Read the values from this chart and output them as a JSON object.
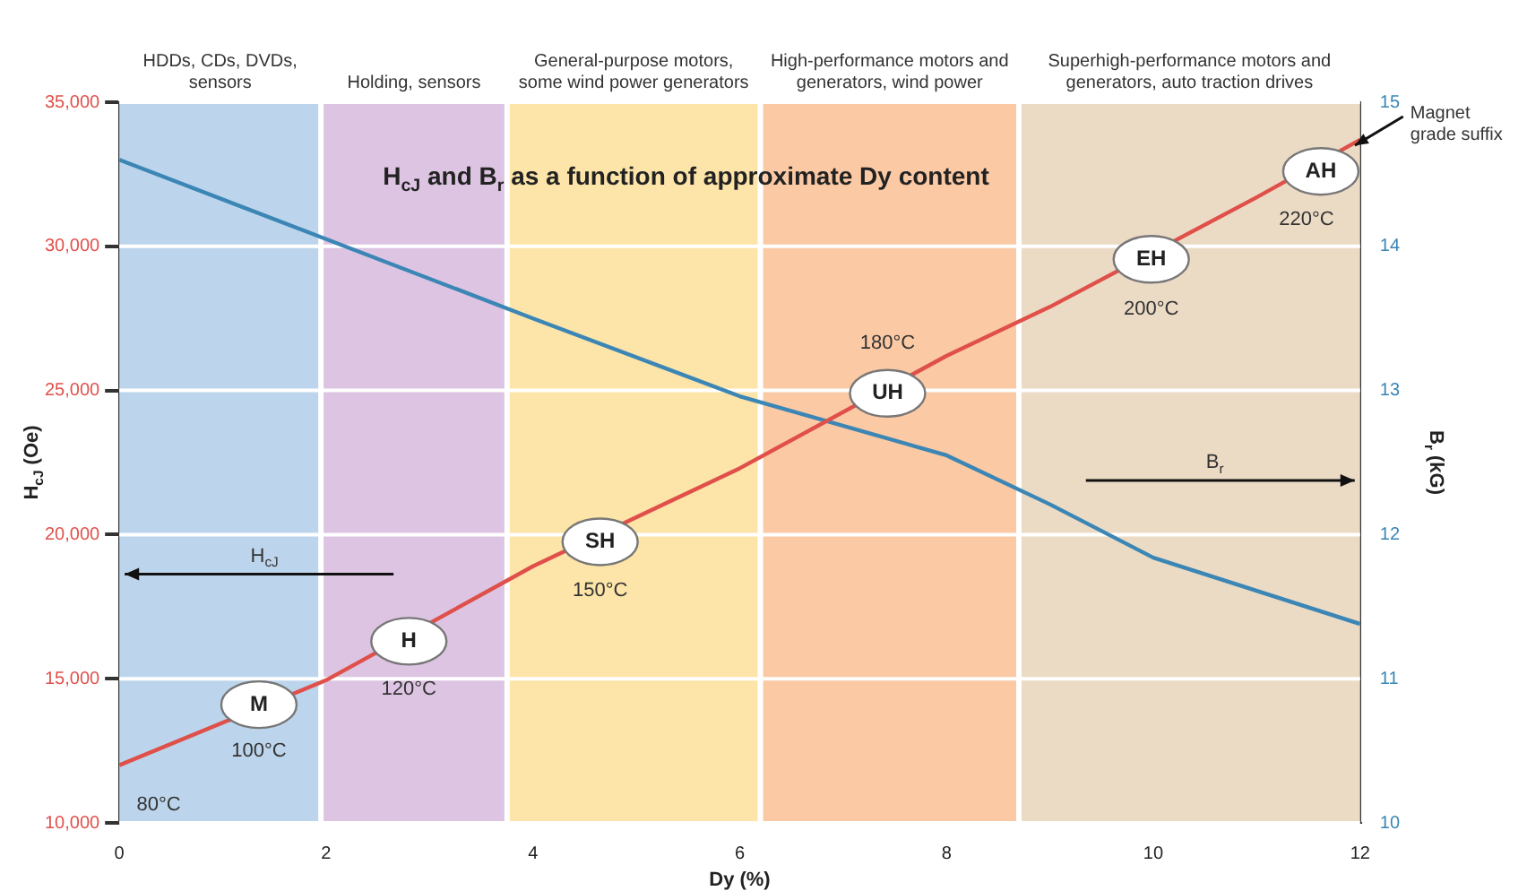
{
  "chart_data": {
    "type": "line",
    "title": "H$_{cJ}$ and B$_{r}$ as a function of approximate Dy content",
    "xlabel": "Dy (%)",
    "ylabel": "H$_{cJ}$ (Oe)",
    "y2label": "B$_{r}$ (kG)",
    "series": [
      {
        "color": "#e0504a",
        "axis": "y",
        "x": [
          0,
          2,
          4,
          6,
          8,
          9,
          11,
          12
        ],
        "values": [
          12000,
          14950,
          18900,
          22300,
          26200,
          27900,
          31700,
          33700
        ]
      },
      {
        "color": "#3b86b5",
        "axis": "y2",
        "x": [
          0,
          2,
          4,
          6,
          8,
          9,
          10,
          12
        ],
        "values": [
          14.6,
          14.05,
          13.5,
          12.96,
          12.55,
          12.21,
          11.84,
          11.38
        ]
      }
    ],
    "xlim": [
      0,
      12
    ],
    "xticks": [
      0,
      2,
      4,
      6,
      8,
      10,
      12
    ],
    "ylim": [
      10000,
      35000
    ],
    "yticks": [
      {
        "value": 10000,
        "label": "10,000"
      },
      {
        "value": 15000,
        "label": "15,000"
      },
      {
        "value": 20000,
        "label": "20,000"
      },
      {
        "value": 25000,
        "label": "25,000"
      },
      {
        "value": 30000,
        "label": "30,000"
      },
      {
        "value": 35000,
        "label": "35,000"
      }
    ],
    "y2lim": [
      10,
      15
    ],
    "y2ticks": [
      10,
      11,
      12,
      13,
      14,
      15
    ],
    "grid": "y",
    "legend": false,
    "marker": "none",
    "line_style": "solid",
    "bands": [
      {
        "axis": "x",
        "from": 0,
        "to": 1.95,
        "label": "HDDs, CDs, DVDs, sensors",
        "color": "#bcd5ec"
      },
      {
        "axis": "x",
        "from": 1.95,
        "to": 3.75,
        "label": "Holding, sensors",
        "color": "#dcc4e2"
      },
      {
        "axis": "x",
        "from": 3.75,
        "to": 6.2,
        "label": "General-purpose motors, some wind power generators",
        "color": "#fde4a9"
      },
      {
        "axis": "x",
        "from": 6.2,
        "to": 8.7,
        "label": "High-performance motors and generators, wind power",
        "color": "#fbc9a4"
      },
      {
        "axis": "x",
        "from": 8.7,
        "to": 12,
        "label": "Superhigh-performance motors and generators, auto traction drives",
        "color": "#ebdbc5"
      }
    ],
    "annotations": [
      {
        "text": "M",
        "x": 1.35,
        "y": 14100
      },
      {
        "text": "H",
        "x": 2.8,
        "y": 16300
      },
      {
        "text": "SH",
        "x": 4.65,
        "y": 19750
      },
      {
        "text": "UH",
        "x": 7.43,
        "y": 24900
      },
      {
        "text": "EH",
        "x": 9.98,
        "y": 29550
      },
      {
        "text": "AH",
        "x": 11.62,
        "y": 32600
      },
      "80°C",
      "100°C",
      "120°C",
      "150°C",
      "180°C",
      "200°C",
      "220°C",
      "H$_{cJ}$",
      "B$_{r}$",
      {
        "text": "Magnet grade suffix",
        "x": 11.95,
        "y": 33500
      }
    ]
  }
}
